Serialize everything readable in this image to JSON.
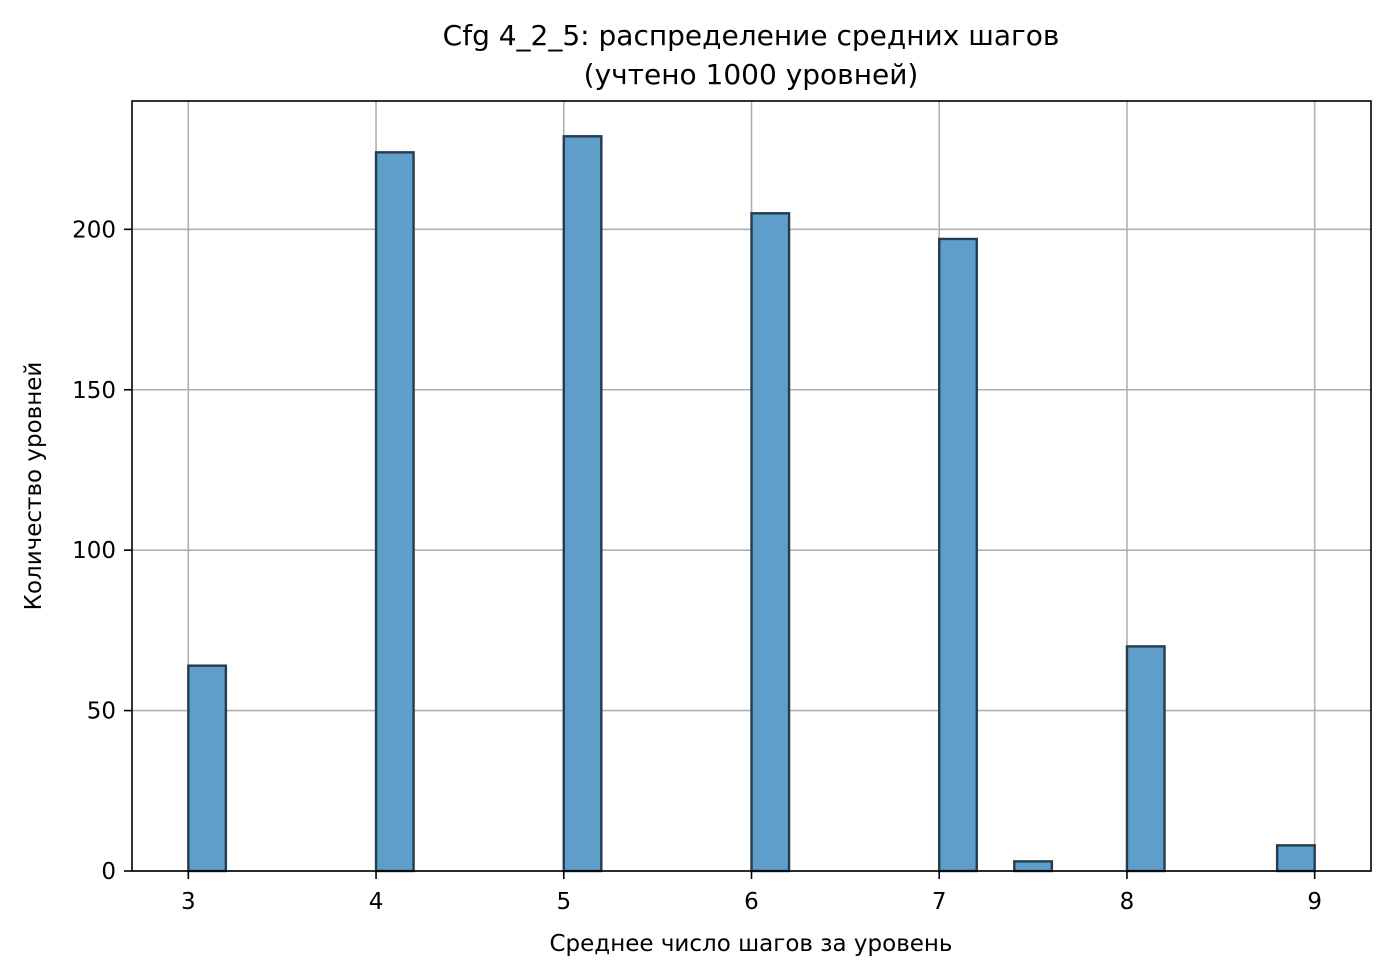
{
  "chart_data": {
    "type": "bar",
    "title_line1": "Cfg 4_2_5: распределение средних шагов",
    "title_line2": "(учтено 1000 уровней)",
    "xlabel": "Среднее число шагов за уровень",
    "ylabel": "Количество уровней",
    "xlim": [
      2.7,
      9.3
    ],
    "ylim": [
      0,
      240
    ],
    "xticks": [
      3,
      4,
      5,
      6,
      7,
      8,
      9
    ],
    "yticks": [
      0,
      50,
      100,
      150,
      200
    ],
    "bin_width": 0.2,
    "bins": [
      {
        "start": 3.0,
        "value": 64
      },
      {
        "start": 4.0,
        "value": 224
      },
      {
        "start": 5.0,
        "value": 229
      },
      {
        "start": 6.0,
        "value": 205
      },
      {
        "start": 7.0,
        "value": 197
      },
      {
        "start": 7.4,
        "value": 3
      },
      {
        "start": 8.0,
        "value": 70
      },
      {
        "start": 8.8,
        "value": 8
      }
    ],
    "grid": true,
    "colors": {
      "bar_fill": "#5f9ecb",
      "bar_edge": "#263c4d",
      "grid": "#b0b0b0",
      "axis": "#000000"
    }
  }
}
